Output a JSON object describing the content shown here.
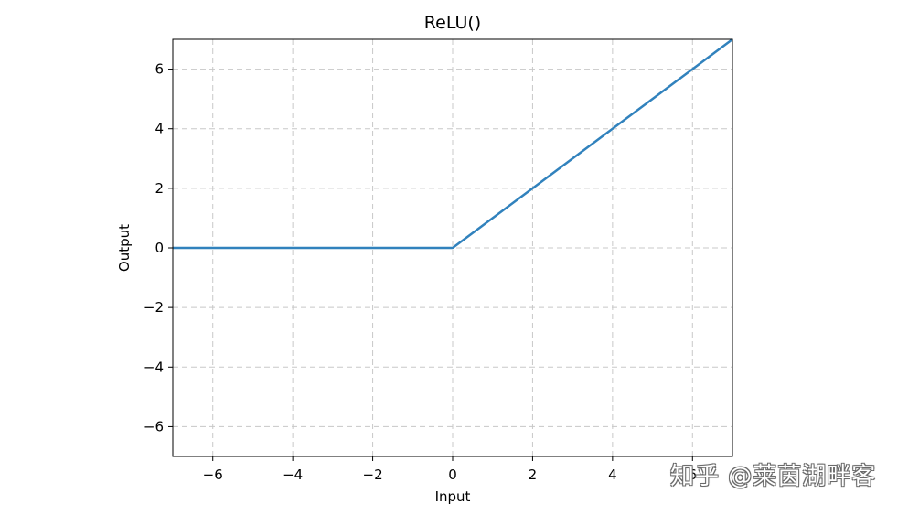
{
  "chart_data": {
    "type": "line",
    "title": "ReLU()",
    "xlabel": "Input",
    "ylabel": "Output",
    "xlim": [
      -7,
      7
    ],
    "ylim": [
      -7,
      7
    ],
    "xticks": [
      -6,
      -4,
      -2,
      0,
      2,
      4,
      6
    ],
    "yticks": [
      -6,
      -4,
      -2,
      0,
      2,
      4,
      6
    ],
    "xtick_labels": [
      "−6",
      "−4",
      "−2",
      "0",
      "2",
      "4",
      "6"
    ],
    "ytick_labels": [
      "−6",
      "−4",
      "−2",
      "0",
      "2",
      "4",
      "6"
    ],
    "grid": true,
    "grid_style": "dashed",
    "legend": false,
    "series": [
      {
        "color": "#3182bd",
        "x": [
          -7,
          0,
          7
        ],
        "y": [
          0,
          0,
          7
        ]
      }
    ]
  },
  "watermark": {
    "text": "知乎 @莱茵湖畔客"
  }
}
